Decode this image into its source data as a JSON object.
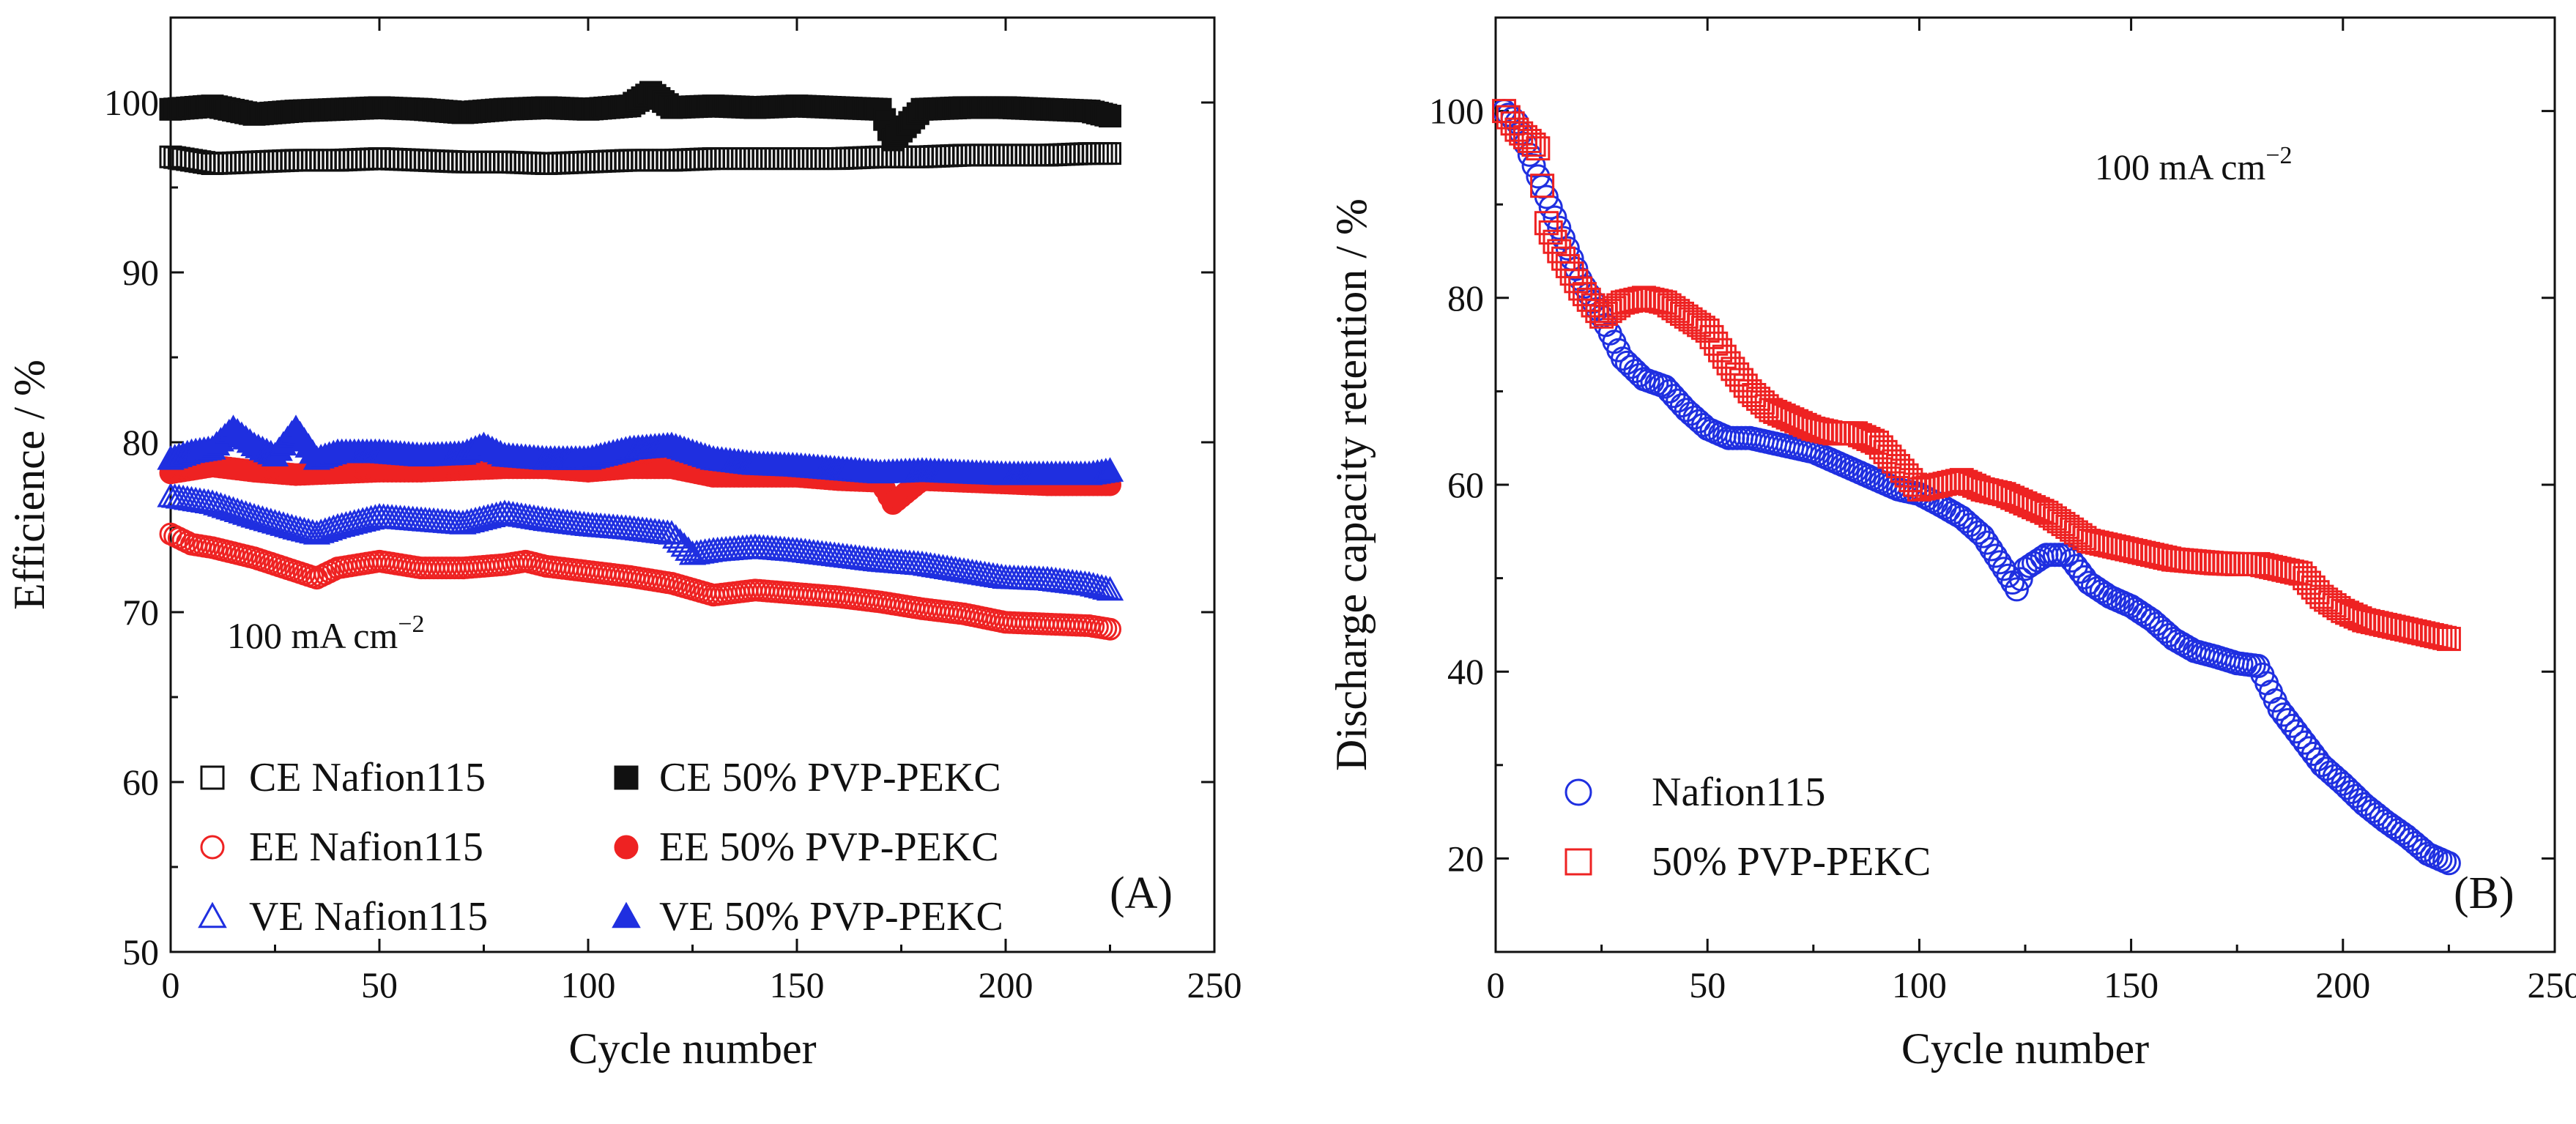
{
  "colors": {
    "black": "#111111",
    "red": "#ee2222",
    "blue": "#1f2fe0"
  },
  "chart_data": [
    {
      "type": "scatter",
      "panel_label": "(A)",
      "annotation": {
        "text": "100 mA cm",
        "sup": "−2"
      },
      "xlabel": "Cycle number",
      "ylabel": "Efficience / %",
      "xlim": [
        0,
        250
      ],
      "ylim": [
        50,
        105
      ],
      "xticks": [
        0,
        50,
        100,
        150,
        200,
        250
      ],
      "yticks": [
        50,
        60,
        70,
        80,
        90,
        100
      ],
      "legend_position": "bottom",
      "series": [
        {
          "name": "CE Nafion115",
          "marker": "square",
          "filled": false,
          "color": "#111111",
          "points": [
            [
              0,
              96.8
            ],
            [
              10,
              96.4
            ],
            [
              20,
              96.5
            ],
            [
              30,
              96.6
            ],
            [
              40,
              96.6
            ],
            [
              50,
              96.7
            ],
            [
              60,
              96.6
            ],
            [
              70,
              96.5
            ],
            [
              80,
              96.5
            ],
            [
              90,
              96.4
            ],
            [
              100,
              96.5
            ],
            [
              110,
              96.6
            ],
            [
              120,
              96.6
            ],
            [
              130,
              96.7
            ],
            [
              140,
              96.7
            ],
            [
              150,
              96.7
            ],
            [
              160,
              96.7
            ],
            [
              170,
              96.8
            ],
            [
              180,
              96.8
            ],
            [
              190,
              96.9
            ],
            [
              200,
              96.9
            ],
            [
              210,
              96.9
            ],
            [
              220,
              97.0
            ],
            [
              225,
              97.0
            ]
          ]
        },
        {
          "name": "EE Nafion115",
          "marker": "circle",
          "filled": false,
          "color": "#ee2222",
          "points": [
            [
              0,
              74.6
            ],
            [
              5,
              74.0
            ],
            [
              10,
              73.8
            ],
            [
              20,
              73.2
            ],
            [
              30,
              72.4
            ],
            [
              35,
              72.0
            ],
            [
              40,
              72.6
            ],
            [
              50,
              73.0
            ],
            [
              60,
              72.6
            ],
            [
              70,
              72.6
            ],
            [
              80,
              72.8
            ],
            [
              85,
              73.0
            ],
            [
              90,
              72.7
            ],
            [
              100,
              72.4
            ],
            [
              110,
              72.1
            ],
            [
              120,
              71.7
            ],
            [
              130,
              71.0
            ],
            [
              140,
              71.3
            ],
            [
              150,
              71.1
            ],
            [
              160,
              70.9
            ],
            [
              170,
              70.6
            ],
            [
              180,
              70.2
            ],
            [
              190,
              69.9
            ],
            [
              200,
              69.4
            ],
            [
              210,
              69.3
            ],
            [
              220,
              69.2
            ],
            [
              225,
              69.0
            ]
          ]
        },
        {
          "name": "VE Nafion115",
          "marker": "triangle",
          "filled": false,
          "color": "#1f2fe0",
          "points": [
            [
              0,
              76.8
            ],
            [
              10,
              76.4
            ],
            [
              20,
              75.6
            ],
            [
              30,
              74.9
            ],
            [
              35,
              74.6
            ],
            [
              40,
              75.0
            ],
            [
              50,
              75.6
            ],
            [
              60,
              75.4
            ],
            [
              70,
              75.2
            ],
            [
              80,
              75.8
            ],
            [
              90,
              75.4
            ],
            [
              100,
              75.1
            ],
            [
              110,
              74.9
            ],
            [
              120,
              74.6
            ],
            [
              125,
              73.4
            ],
            [
              130,
              73.6
            ],
            [
              140,
              73.8
            ],
            [
              150,
              73.6
            ],
            [
              160,
              73.3
            ],
            [
              170,
              73.0
            ],
            [
              180,
              72.8
            ],
            [
              190,
              72.4
            ],
            [
              200,
              72.0
            ],
            [
              210,
              71.9
            ],
            [
              220,
              71.6
            ],
            [
              225,
              71.3
            ]
          ]
        },
        {
          "name": "CE 50% PVP-PEKC",
          "marker": "square",
          "filled": true,
          "color": "#111111",
          "points": [
            [
              0,
              99.6
            ],
            [
              10,
              99.8
            ],
            [
              20,
              99.3
            ],
            [
              30,
              99.5
            ],
            [
              40,
              99.6
            ],
            [
              50,
              99.7
            ],
            [
              60,
              99.6
            ],
            [
              70,
              99.4
            ],
            [
              80,
              99.6
            ],
            [
              90,
              99.7
            ],
            [
              100,
              99.6
            ],
            [
              110,
              99.8
            ],
            [
              115,
              100.6
            ],
            [
              120,
              99.7
            ],
            [
              130,
              99.8
            ],
            [
              140,
              99.7
            ],
            [
              150,
              99.8
            ],
            [
              160,
              99.7
            ],
            [
              170,
              99.6
            ],
            [
              173,
              97.8
            ],
            [
              180,
              99.6
            ],
            [
              190,
              99.7
            ],
            [
              200,
              99.7
            ],
            [
              210,
              99.6
            ],
            [
              220,
              99.5
            ],
            [
              225,
              99.2
            ]
          ]
        },
        {
          "name": "EE 50% PVP-PEKC",
          "marker": "circle",
          "filled": true,
          "color": "#ee2222",
          "points": [
            [
              0,
              78.2
            ],
            [
              10,
              78.6
            ],
            [
              20,
              78.3
            ],
            [
              30,
              78.1
            ],
            [
              40,
              78.2
            ],
            [
              50,
              78.3
            ],
            [
              60,
              78.3
            ],
            [
              70,
              78.4
            ],
            [
              80,
              78.5
            ],
            [
              90,
              78.5
            ],
            [
              100,
              78.3
            ],
            [
              110,
              78.5
            ],
            [
              120,
              78.5
            ],
            [
              130,
              78.0
            ],
            [
              140,
              78.0
            ],
            [
              150,
              78.0
            ],
            [
              160,
              77.8
            ],
            [
              170,
              77.7
            ],
            [
              173,
              76.4
            ],
            [
              180,
              77.8
            ],
            [
              190,
              77.7
            ],
            [
              200,
              77.6
            ],
            [
              210,
              77.5
            ],
            [
              220,
              77.5
            ],
            [
              225,
              77.5
            ]
          ]
        },
        {
          "name": "VE 50% PVP-PEKC",
          "marker": "triangle",
          "filled": true,
          "color": "#1f2fe0",
          "points": [
            [
              0,
              79.0
            ],
            [
              5,
              79.4
            ],
            [
              10,
              79.6
            ],
            [
              15,
              80.8
            ],
            [
              20,
              79.8
            ],
            [
              25,
              79.2
            ],
            [
              30,
              80.8
            ],
            [
              35,
              79.0
            ],
            [
              40,
              79.4
            ],
            [
              50,
              79.4
            ],
            [
              60,
              79.2
            ],
            [
              70,
              79.3
            ],
            [
              75,
              79.8
            ],
            [
              80,
              79.2
            ],
            [
              90,
              79.0
            ],
            [
              100,
              79.0
            ],
            [
              110,
              79.6
            ],
            [
              120,
              79.8
            ],
            [
              125,
              79.4
            ],
            [
              130,
              79.0
            ],
            [
              140,
              78.7
            ],
            [
              150,
              78.6
            ],
            [
              160,
              78.4
            ],
            [
              170,
              78.2
            ],
            [
              180,
              78.3
            ],
            [
              190,
              78.2
            ],
            [
              200,
              78.1
            ],
            [
              210,
              78.1
            ],
            [
              220,
              78.1
            ],
            [
              225,
              78.3
            ]
          ]
        }
      ]
    },
    {
      "type": "scatter",
      "panel_label": "(B)",
      "annotation": {
        "text": "100 mA cm",
        "sup": "−2"
      },
      "xlabel": "Cycle number",
      "ylabel": "Discharge capacity retention / %",
      "xlim": [
        0,
        250
      ],
      "ylim": [
        10,
        110
      ],
      "xticks": [
        0,
        50,
        100,
        150,
        200,
        250
      ],
      "yticks": [
        20,
        40,
        60,
        80,
        100
      ],
      "legend_position": "bottom-left",
      "series": [
        {
          "name": "Nafion115",
          "marker": "circle",
          "filled": false,
          "color": "#1f2fe0",
          "points": [
            [
              2,
              100
            ],
            [
              5,
              98.8
            ],
            [
              10,
              93
            ],
            [
              15,
              87.5
            ],
            [
              20,
              82
            ],
            [
              25,
              78
            ],
            [
              30,
              73.5
            ],
            [
              35,
              71.3
            ],
            [
              40,
              70.5
            ],
            [
              45,
              68
            ],
            [
              50,
              66
            ],
            [
              55,
              65
            ],
            [
              60,
              65
            ],
            [
              65,
              64.5
            ],
            [
              70,
              64
            ],
            [
              75,
              63.5
            ],
            [
              80,
              62.5
            ],
            [
              85,
              61.5
            ],
            [
              90,
              60.5
            ],
            [
              95,
              59.5
            ],
            [
              100,
              59
            ],
            [
              105,
              57.8
            ],
            [
              110,
              56.5
            ],
            [
              115,
              54.5
            ],
            [
              120,
              51
            ],
            [
              123,
              48.8
            ],
            [
              125,
              51
            ],
            [
              130,
              52.5
            ],
            [
              135,
              52.5
            ],
            [
              140,
              49.5
            ],
            [
              145,
              48
            ],
            [
              150,
              47
            ],
            [
              155,
              45.5
            ],
            [
              160,
              43.5
            ],
            [
              165,
              42.2
            ],
            [
              170,
              41.6
            ],
            [
              175,
              40.9
            ],
            [
              180,
              40.6
            ],
            [
              185,
              36
            ],
            [
              190,
              33
            ],
            [
              195,
              30
            ],
            [
              200,
              28
            ],
            [
              205,
              25.8
            ],
            [
              210,
              24
            ],
            [
              215,
              22.4
            ],
            [
              220,
              20.5
            ],
            [
              225,
              19.5
            ]
          ]
        },
        {
          "name": "50% PVP-PEKC",
          "marker": "square",
          "filled": false,
          "color": "#ee2222",
          "points": [
            [
              2,
              100
            ],
            [
              5,
              98
            ],
            [
              10,
              96
            ],
            [
              12,
              88
            ],
            [
              15,
              85
            ],
            [
              20,
              81
            ],
            [
              25,
              78
            ],
            [
              30,
              79.5
            ],
            [
              35,
              80
            ],
            [
              40,
              79.5
            ],
            [
              45,
              78
            ],
            [
              50,
              76.5
            ],
            [
              55,
              73
            ],
            [
              60,
              70
            ],
            [
              65,
              68
            ],
            [
              70,
              67
            ],
            [
              75,
              66
            ],
            [
              80,
              65.5
            ],
            [
              85,
              65.5
            ],
            [
              90,
              64.5
            ],
            [
              95,
              62
            ],
            [
              100,
              59.5
            ],
            [
              105,
              60
            ],
            [
              110,
              60.5
            ],
            [
              115,
              59.5
            ],
            [
              120,
              59
            ],
            [
              125,
              58
            ],
            [
              130,
              57
            ],
            [
              135,
              55.5
            ],
            [
              140,
              54
            ],
            [
              145,
              53.5
            ],
            [
              150,
              53
            ],
            [
              155,
              52.5
            ],
            [
              160,
              52
            ],
            [
              165,
              51.8
            ],
            [
              170,
              51.6
            ],
            [
              175,
              51.5
            ],
            [
              180,
              51.5
            ],
            [
              185,
              51
            ],
            [
              190,
              50.5
            ],
            [
              195,
              48
            ],
            [
              200,
              46.5
            ],
            [
              205,
              45.5
            ],
            [
              210,
              45
            ],
            [
              215,
              44.5
            ],
            [
              220,
              44
            ],
            [
              225,
              43.5
            ]
          ]
        }
      ]
    }
  ]
}
